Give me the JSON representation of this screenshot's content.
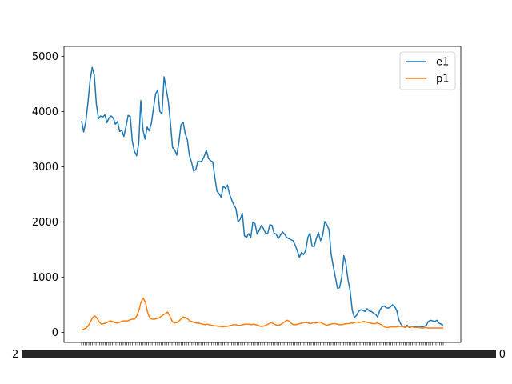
{
  "chart_data": {
    "type": "line",
    "title": "",
    "xlabel": "",
    "ylabel": "",
    "ylim": [
      -180,
      5180
    ],
    "yticks": [
      0,
      1000,
      2000,
      3000,
      4000,
      5000
    ],
    "ytick_labels": [
      "0",
      "1000",
      "2000",
      "3000",
      "4000",
      "5000"
    ],
    "x_tick_count": 201,
    "x_tick_labels_overlapping": true,
    "x_label_left_fragment": "2",
    "x_label_right_fragment": "0",
    "grid": false,
    "legend": {
      "placement": "top-right"
    },
    "series": [
      {
        "name": "e1",
        "color": "#1f77b4",
        "values": [
          3830,
          3630,
          3820,
          4160,
          4560,
          4800,
          4660,
          4130,
          3870,
          3920,
          3900,
          3940,
          3800,
          3890,
          3920,
          3880,
          3770,
          3820,
          3640,
          3660,
          3550,
          3730,
          3930,
          3910,
          3460,
          3280,
          3200,
          3420,
          4200,
          3670,
          3500,
          3720,
          3650,
          3790,
          4060,
          4320,
          4390,
          4000,
          3960,
          4630,
          4410,
          4190,
          3800,
          3350,
          3310,
          3210,
          3440,
          3760,
          3810,
          3600,
          3490,
          3200,
          3080,
          2920,
          2950,
          3100,
          3090,
          3110,
          3190,
          3300,
          3150,
          3110,
          3090,
          2810,
          2560,
          2510,
          2450,
          2650,
          2610,
          2670,
          2500,
          2400,
          2310,
          2240,
          2000,
          2050,
          2160,
          1750,
          1720,
          1790,
          1720,
          2000,
          1970,
          1780,
          1850,
          1940,
          1880,
          1800,
          1790,
          1950,
          1940,
          1800,
          1780,
          1700,
          1760,
          1820,
          1780,
          1720,
          1700,
          1680,
          1660,
          1580,
          1480,
          1360,
          1450,
          1410,
          1490,
          1720,
          1800,
          1560,
          1560,
          1700,
          1810,
          1660,
          1760,
          2010,
          1950,
          1860,
          1420,
          1200,
          1000,
          800,
          810,
          1000,
          1390,
          1240,
          950,
          750,
          400,
          270,
          310,
          380,
          410,
          400,
          380,
          430,
          390,
          380,
          350,
          330,
          280,
          400,
          460,
          480,
          450,
          440,
          460,
          500,
          470,
          400,
          230,
          150,
          110,
          90,
          130,
          90,
          100,
          110,
          100,
          110,
          110,
          100,
          110,
          130,
          200,
          220,
          210,
          200,
          220,
          170,
          150,
          130
        ]
      },
      {
        "name": "p1",
        "color": "#ff7f0e",
        "values": [
          50,
          60,
          80,
          120,
          190,
          270,
          300,
          260,
          190,
          150,
          160,
          170,
          190,
          210,
          200,
          180,
          170,
          180,
          200,
          210,
          210,
          210,
          230,
          240,
          240,
          300,
          400,
          560,
          620,
          540,
          350,
          260,
          240,
          240,
          250,
          260,
          290,
          320,
          340,
          370,
          300,
          210,
          170,
          180,
          200,
          240,
          280,
          270,
          250,
          210,
          200,
          180,
          170,
          170,
          160,
          150,
          140,
          150,
          140,
          130,
          120,
          120,
          110,
          110,
          100,
          110,
          110,
          120,
          130,
          140,
          140,
          130,
          130,
          140,
          150,
          150,
          150,
          140,
          150,
          140,
          130,
          110,
          110,
          120,
          140,
          160,
          180,
          160,
          140,
          130,
          140,
          160,
          190,
          220,
          210,
          170,
          140,
          140,
          150,
          160,
          170,
          180,
          180,
          170,
          160,
          180,
          170,
          180,
          190,
          170,
          150,
          130,
          140,
          150,
          160,
          160,
          150,
          140,
          140,
          150,
          160,
          160,
          170,
          170,
          180,
          190,
          180,
          190,
          200,
          190,
          180,
          170,
          160,
          160,
          170,
          160,
          140,
          110,
          90,
          90,
          100,
          100,
          100,
          100,
          110,
          110,
          100,
          100,
          110,
          100,
          100,
          90,
          90,
          90,
          80,
          80,
          90,
          80,
          80,
          80,
          80,
          80,
          80,
          80,
          80
        ]
      }
    ]
  }
}
